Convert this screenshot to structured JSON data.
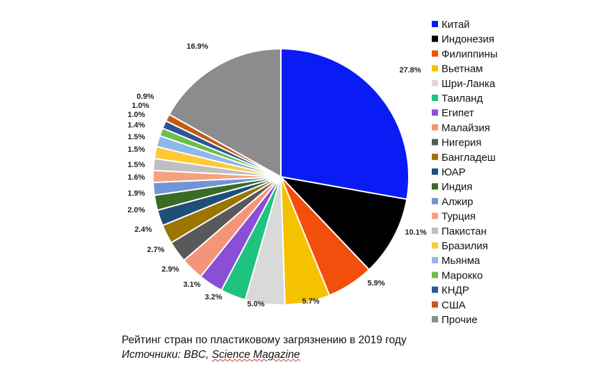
{
  "chart_data": {
    "type": "pie",
    "title": "Рейтинг стран по пластиковому загрязнению в 2019 году",
    "source_label": "Источники:",
    "source_rest": "BBC, ",
    "source_underlined": "Science Magazine",
    "legend_position": "right",
    "slices": [
      {
        "name": "Китай",
        "value": 27.8,
        "label": "27.8%",
        "color": "#0a1cf5"
      },
      {
        "name": "Индонезия",
        "value": 10.1,
        "label": "10.1%",
        "color": "#000000"
      },
      {
        "name": "Филиппины",
        "value": 5.9,
        "label": "5.9%",
        "color": "#f24f0c"
      },
      {
        "name": "Вьетнам",
        "value": 5.7,
        "label": "5.7%",
        "color": "#f5c200"
      },
      {
        "name": "Шри-Ланка",
        "value": 5.0,
        "label": "5.0%",
        "color": "#d9d9d9"
      },
      {
        "name": "Таиланд",
        "value": 3.2,
        "label": "3.2%",
        "color": "#1fc27e"
      },
      {
        "name": "Египет",
        "value": 3.1,
        "label": "3.1%",
        "color": "#8a4fd6"
      },
      {
        "name": "Малайзия",
        "value": 2.9,
        "label": "2.9%",
        "color": "#f4957a"
      },
      {
        "name": "Нигерия",
        "value": 2.7,
        "label": "2.7%",
        "color": "#595959"
      },
      {
        "name": "Бангладеш",
        "value": 2.4,
        "label": "2.4%",
        "color": "#9c7400"
      },
      {
        "name": "ЮАР",
        "value": 2.0,
        "label": "2.0%",
        "color": "#1f4e79"
      },
      {
        "name": "Индия",
        "value": 1.9,
        "label": "1.9%",
        "color": "#3a6b25"
      },
      {
        "name": "Алжир",
        "value": 1.6,
        "label": "1.6%",
        "color": "#6f95d6"
      },
      {
        "name": "Турция",
        "value": 1.5,
        "label": "1.5%",
        "color": "#f4a27e"
      },
      {
        "name": "Пакистан",
        "value": 1.5,
        "label": "1.5%",
        "color": "#bfbfbf"
      },
      {
        "name": "Бразилия",
        "value": 1.5,
        "label": "1.5%",
        "color": "#ffc935"
      },
      {
        "name": "Мьянма",
        "value": 1.4,
        "label": "1.4%",
        "color": "#8fb8ea"
      },
      {
        "name": "Марокко",
        "value": 1.0,
        "label": "1.0%",
        "color": "#6dbd4c"
      },
      {
        "name": "КНДР",
        "value": 1.0,
        "label": "1.0%",
        "color": "#2f5597"
      },
      {
        "name": "США",
        "value": 0.9,
        "label": "0.9%",
        "color": "#c55a11"
      },
      {
        "name": "Прочие",
        "value": 16.9,
        "label": "16.9%",
        "color": "#8c8c8c"
      }
    ]
  }
}
